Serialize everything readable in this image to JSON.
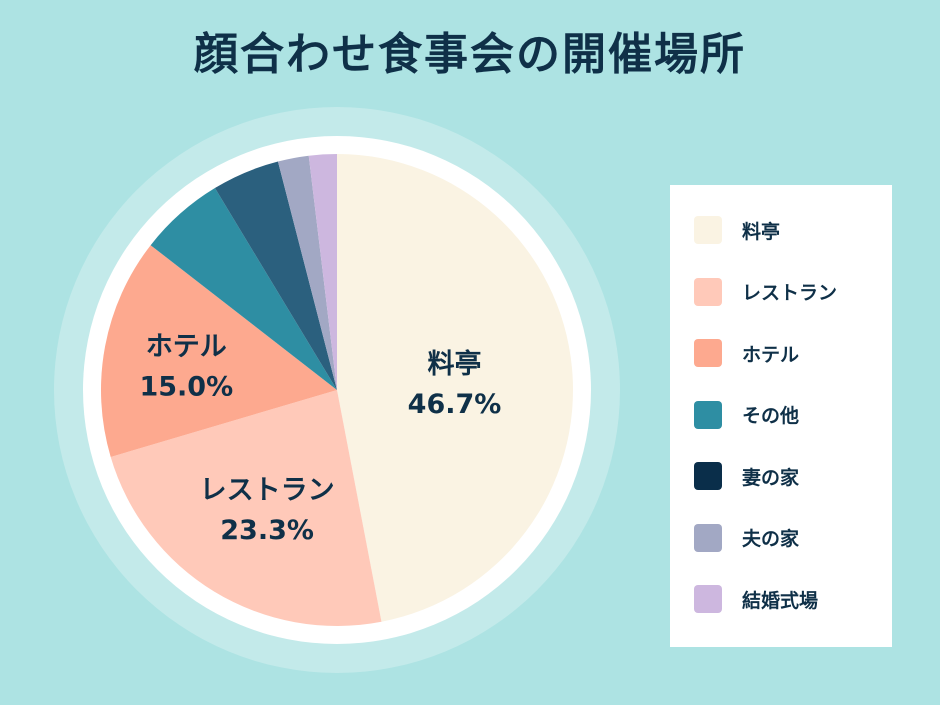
{
  "title": "顔合わせ食事会の開催場所",
  "chart_data": {
    "type": "pie",
    "categories": [
      "料亭",
      "レストラン",
      "ホテル",
      "その他",
      "妻の家",
      "夫の家",
      "結婚式場"
    ],
    "values": [
      46.7,
      23.3,
      15.0,
      5.8,
      4.6,
      2.1,
      1.9
    ],
    "value_labels": [
      "46.7%",
      "23.3%",
      "15.0%",
      "",
      "",
      "",
      ""
    ],
    "colors": [
      "#faf3e3",
      "#ffc9b9",
      "#fda98f",
      "#2e8ea3",
      "#2b607e",
      "#a2a8c4",
      "#cdb7df"
    ],
    "legend": {
      "position": "right",
      "swatch_colors": [
        "#faf3e3",
        "#ffc9b9",
        "#fda98f",
        "#2e8ea3",
        "#0a2e4a",
        "#a2a8c4",
        "#cdb7df"
      ]
    }
  }
}
